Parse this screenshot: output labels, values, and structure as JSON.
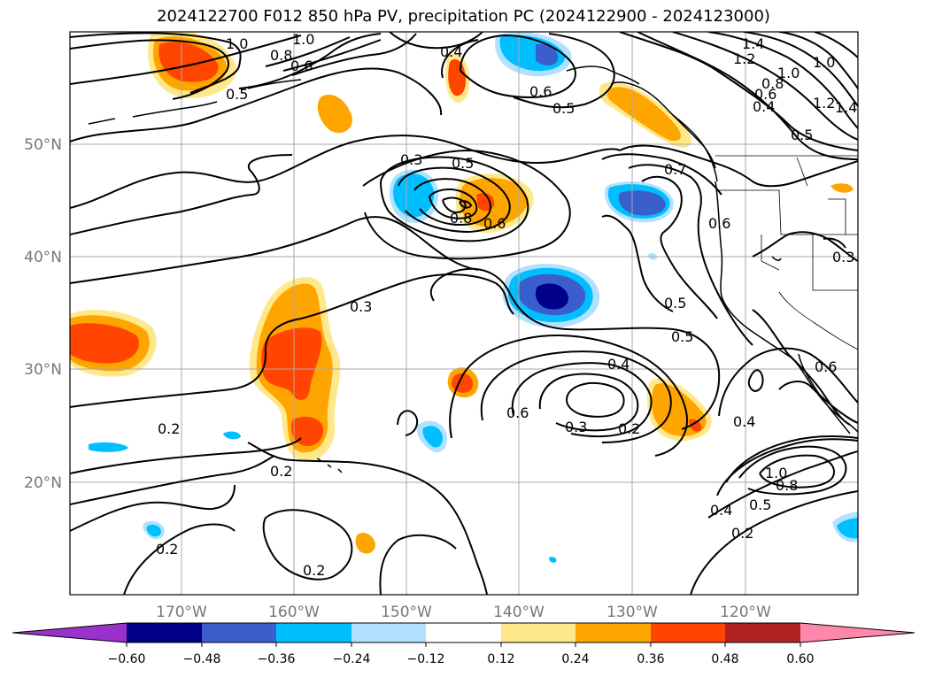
{
  "title": "2024122700 F012 850 hPa PV, precipitation PC (2024122900 - 2024123000)",
  "map": {
    "lat_ticks": [
      "50°N",
      "40°N",
      "30°N",
      "20°N"
    ],
    "lon_ticks": [
      "170°W",
      "160°W",
      "150°W",
      "140°W",
      "130°W",
      "120°W"
    ],
    "grid": true,
    "contour_color": "#000000"
  },
  "contour_labels": [
    {
      "text": "1.0"
    },
    {
      "text": "1.0"
    },
    {
      "text": "0.8"
    },
    {
      "text": "0.6"
    },
    {
      "text": "0.5"
    },
    {
      "text": "0.4"
    },
    {
      "text": "0.6"
    },
    {
      "text": "0.5"
    },
    {
      "text": "1.4"
    },
    {
      "text": "1.2"
    },
    {
      "text": "1.0"
    },
    {
      "text": "1.0"
    },
    {
      "text": "0.8"
    },
    {
      "text": "0.6"
    },
    {
      "text": "0.4"
    },
    {
      "text": "0.5"
    },
    {
      "text": "1.2"
    },
    {
      "text": "1.4"
    },
    {
      "text": "0.3"
    },
    {
      "text": "0.5"
    },
    {
      "text": "0.8"
    },
    {
      "text": "0.6"
    },
    {
      "text": "0.7"
    },
    {
      "text": "0.6"
    },
    {
      "text": "0.3"
    },
    {
      "text": "0.3"
    },
    {
      "text": "0.5"
    },
    {
      "text": "0.5"
    },
    {
      "text": "0.4"
    },
    {
      "text": "0.6"
    },
    {
      "text": "0.3"
    },
    {
      "text": "0.2"
    },
    {
      "text": "0.2"
    },
    {
      "text": "0.2"
    },
    {
      "text": "0.4"
    },
    {
      "text": "1.0"
    },
    {
      "text": "0.8"
    },
    {
      "text": "0.5"
    },
    {
      "text": "0.4"
    },
    {
      "text": "0.2"
    },
    {
      "text": "0.2"
    },
    {
      "text": "0.2"
    },
    {
      "text": "0.6"
    }
  ],
  "colorbar": {
    "ticks": [
      "−0.60",
      "−0.48",
      "−0.36",
      "−0.24",
      "−0.12",
      "0.12",
      "0.24",
      "0.36",
      "0.48",
      "0.60"
    ],
    "colors": [
      "#9932cc",
      "#00008b",
      "#3a5fcd",
      "#00bfff",
      "#b0e2ff",
      "#ffffff",
      "#ffe88a",
      "#ffa500",
      "#ff4500",
      "#b22222",
      "#ff88aa"
    ]
  }
}
